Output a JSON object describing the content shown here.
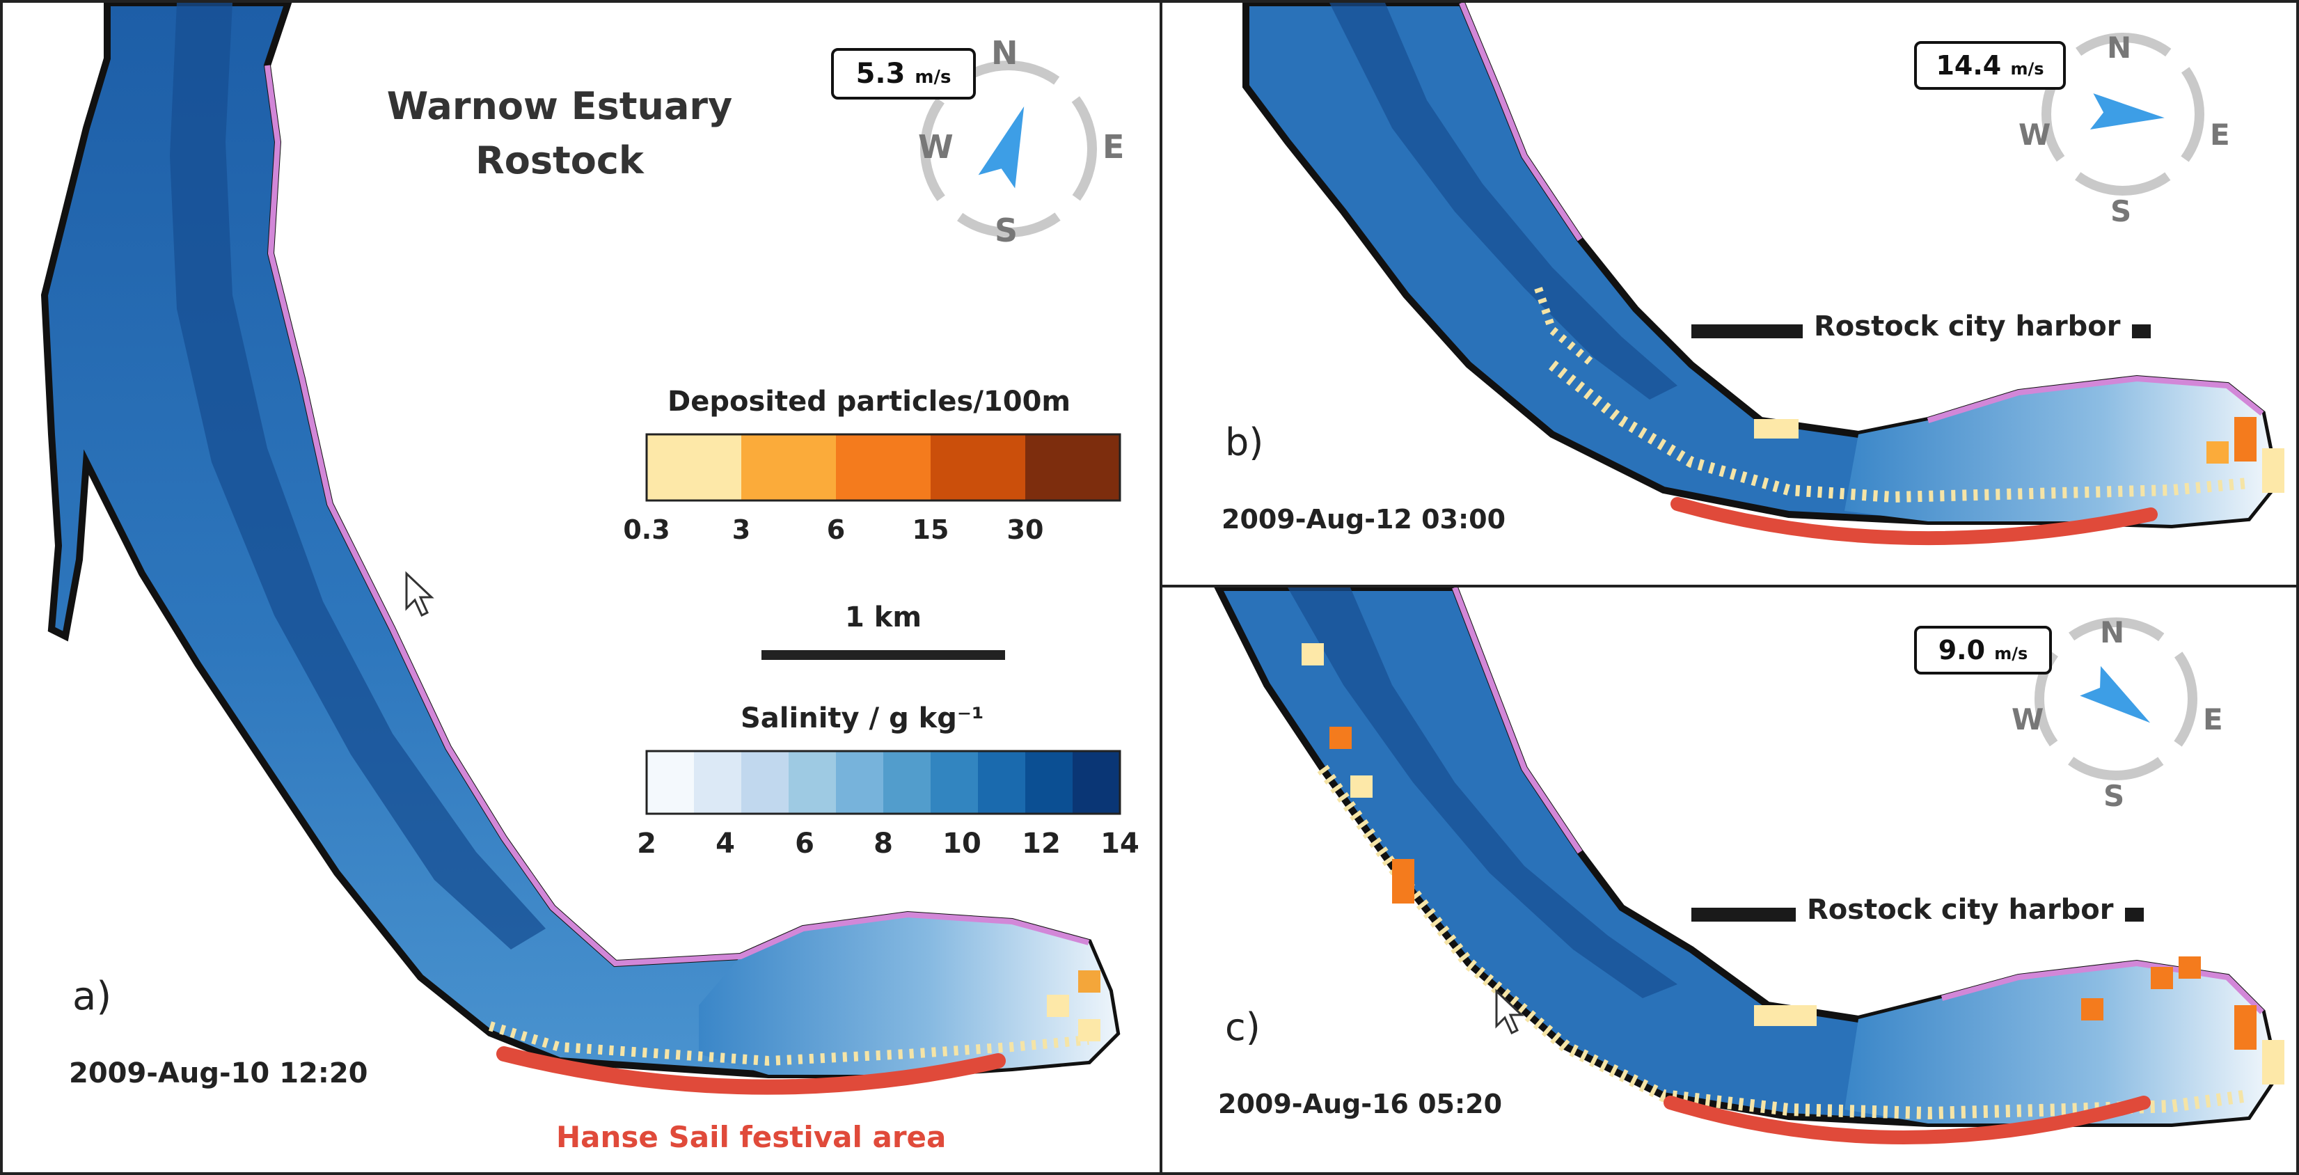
{
  "title": {
    "line1": "Warnow Estuary",
    "line2": "Rostock"
  },
  "panels": {
    "a": {
      "label": "a)",
      "timestamp": "2009-Aug-10 12:20",
      "wind_speed": "5.3",
      "wind_unit": "m/s",
      "wind_direction_deg": 20
    },
    "b": {
      "label": "b)",
      "timestamp": "2009-Aug-12 03:00",
      "wind_speed": "14.4",
      "wind_unit": "m/s",
      "wind_direction_deg": 95,
      "harbor_label": "Rostock city harbor"
    },
    "c": {
      "label": "c)",
      "timestamp": "2009-Aug-16 05:20",
      "wind_speed": "9.0",
      "wind_unit": "m/s",
      "wind_direction_deg": 125,
      "harbor_label": "Rostock city harbor"
    }
  },
  "compass": {
    "n": "N",
    "e": "E",
    "s": "S",
    "w": "W"
  },
  "festival_label": "Hanse Sail festival area",
  "scale_bar": {
    "label": "1 km"
  },
  "legend_particles": {
    "title": "Deposited particles/100m",
    "ticks": [
      "0.3",
      "3",
      "6",
      "15",
      "30"
    ],
    "colors": [
      "#fde8a8",
      "#fbab3a",
      "#f47b1d",
      "#cb4f0b",
      "#7d2d0d"
    ]
  },
  "legend_salinity": {
    "title": "Salinity / g kg⁻¹",
    "ticks": [
      "2",
      "4",
      "6",
      "8",
      "10",
      "12",
      "14"
    ],
    "min": 2,
    "max": 14,
    "colors": [
      "#f4f9fd",
      "#dce9f6",
      "#c1d8ee",
      "#9ecae3",
      "#77b3db",
      "#529dcc",
      "#3285c0",
      "#1a6aae",
      "#0b4f93",
      "#0a3675"
    ]
  },
  "colors": {
    "water_dark": "#1f5fa8",
    "water_mid": "#3a86c8",
    "water_light": "#a7cbe9",
    "shore_black": "#111111",
    "shore_pink": "#d287d8",
    "festival_red": "#e04a3a",
    "particle": "#f5e4a6",
    "compass_grey": "#c9c9c9",
    "arrow_blue": "#3d9ee6"
  }
}
